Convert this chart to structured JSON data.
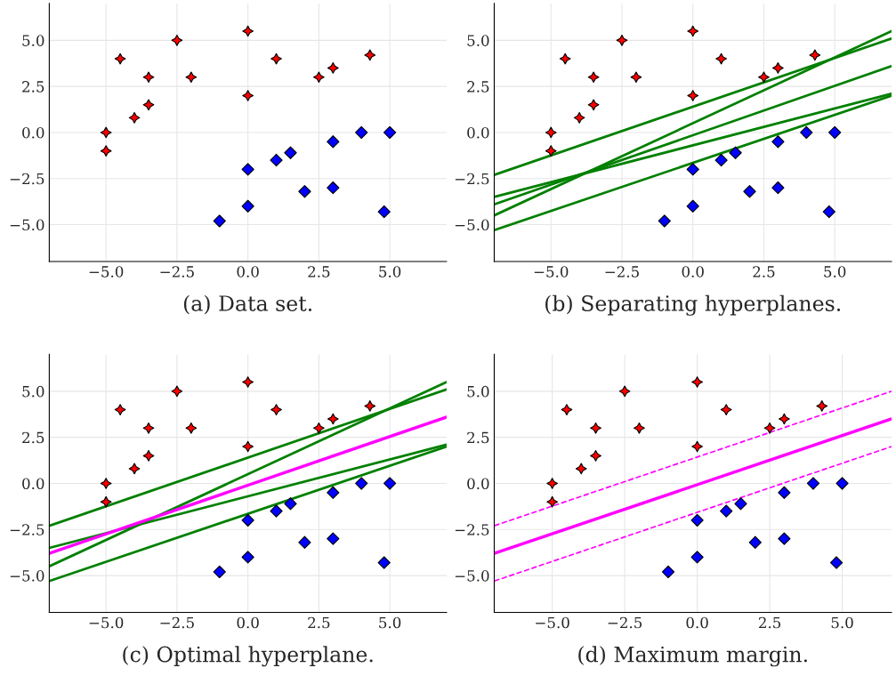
{
  "chart_data": [
    {
      "type": "scatter",
      "xlabel": "(a) Data set.",
      "xlim": [
        -7,
        7
      ],
      "ylim": [
        -7,
        7
      ],
      "xticks": [
        {
          "value": -5,
          "label": "−5.0"
        },
        {
          "value": -2.5,
          "label": "−2.5"
        },
        {
          "value": 0,
          "label": "0.0"
        },
        {
          "value": 2.5,
          "label": "2.5"
        },
        {
          "value": 5,
          "label": "5.0"
        }
      ],
      "yticks": [
        {
          "value": -5,
          "label": "−5.0"
        },
        {
          "value": -2.5,
          "label": "−2.5"
        },
        {
          "value": 0,
          "label": "0.0"
        },
        {
          "value": 2.5,
          "label": "2.5"
        },
        {
          "value": 5,
          "label": "5.0"
        }
      ],
      "grid": true,
      "legend": false,
      "series": [
        {
          "type": "scatter",
          "color": "#ff0000",
          "marker": "star",
          "x": [
            -5,
            -5,
            -4.5,
            -4,
            -3.5,
            -3.5,
            -2.5,
            -2,
            0,
            0,
            1,
            2.5,
            3,
            4.3
          ],
          "values": [
            0,
            -1,
            4,
            0.8,
            3,
            1.5,
            5,
            3,
            5.5,
            2,
            4,
            3,
            3.5,
            4.2
          ]
        },
        {
          "type": "scatter",
          "color": "#0000ff",
          "marker": "diamond",
          "x": [
            -1,
            0,
            0,
            1,
            1.5,
            2,
            3,
            3,
            4,
            5,
            4.8
          ],
          "values": [
            -4.8,
            -2,
            -4,
            -1.5,
            -1.1,
            -3.2,
            -0.5,
            -3,
            0,
            0,
            -4.3
          ]
        }
      ]
    },
    {
      "type": "scatter",
      "xlabel": "(b) Separating hyperplanes.",
      "xlim": [
        -7,
        7
      ],
      "ylim": [
        -7,
        7
      ],
      "xticks": [
        {
          "value": -5,
          "label": "−5.0"
        },
        {
          "value": -2.5,
          "label": "−2.5"
        },
        {
          "value": 0,
          "label": "0.0"
        },
        {
          "value": 2.5,
          "label": "2.5"
        },
        {
          "value": 5,
          "label": "5.0"
        }
      ],
      "yticks": [
        {
          "value": -5,
          "label": "−5.0"
        },
        {
          "value": -2.5,
          "label": "−2.5"
        },
        {
          "value": 0,
          "label": "0.0"
        },
        {
          "value": 2.5,
          "label": "2.5"
        },
        {
          "value": 5,
          "label": "5.0"
        }
      ],
      "grid": true,
      "legend": false,
      "series": [
        {
          "type": "scatter",
          "color": "#ff0000",
          "marker": "star",
          "x": [
            -5,
            -5,
            -4.5,
            -4,
            -3.5,
            -3.5,
            -2.5,
            -2,
            0,
            0,
            1,
            2.5,
            3,
            4.3
          ],
          "values": [
            0,
            -1,
            4,
            0.8,
            3,
            1.5,
            5,
            3,
            5.5,
            2,
            4,
            3,
            3.5,
            4.2
          ]
        },
        {
          "type": "scatter",
          "color": "#0000ff",
          "marker": "diamond",
          "x": [
            -1,
            0,
            0,
            1,
            1.5,
            2,
            3,
            3,
            4,
            5,
            4.8
          ],
          "values": [
            -4.8,
            -2,
            -4,
            -1.5,
            -1.1,
            -3.2,
            -0.5,
            -3,
            0,
            0,
            -4.3
          ]
        },
        {
          "type": "line",
          "color": "#008000",
          "line_style": "solid",
          "x": [
            -7,
            7
          ],
          "values": [
            -2.3,
            5.1
          ]
        },
        {
          "type": "line",
          "color": "#008000",
          "line_style": "solid",
          "x": [
            -7,
            7
          ],
          "values": [
            -4.5,
            5.5
          ]
        },
        {
          "type": "line",
          "color": "#008000",
          "line_style": "solid",
          "x": [
            -7,
            7
          ],
          "values": [
            -3.9,
            3.6
          ]
        },
        {
          "type": "line",
          "color": "#008000",
          "line_style": "solid",
          "x": [
            -7,
            7
          ],
          "values": [
            -3.5,
            2.1
          ]
        },
        {
          "type": "line",
          "color": "#008000",
          "line_style": "solid",
          "x": [
            -7,
            7
          ],
          "values": [
            -5.3,
            2.0
          ]
        }
      ]
    },
    {
      "type": "scatter",
      "xlabel": "(c) Optimal hyperplane.",
      "xlim": [
        -7,
        7
      ],
      "ylim": [
        -7,
        7
      ],
      "xticks": [
        {
          "value": -5,
          "label": "−5.0"
        },
        {
          "value": -2.5,
          "label": "−2.5"
        },
        {
          "value": 0,
          "label": "0.0"
        },
        {
          "value": 2.5,
          "label": "2.5"
        },
        {
          "value": 5,
          "label": "5.0"
        }
      ],
      "yticks": [
        {
          "value": -5,
          "label": "−5.0"
        },
        {
          "value": -2.5,
          "label": "−2.5"
        },
        {
          "value": 0,
          "label": "0.0"
        },
        {
          "value": 2.5,
          "label": "2.5"
        },
        {
          "value": 5,
          "label": "5.0"
        }
      ],
      "grid": true,
      "legend": false,
      "series": [
        {
          "type": "scatter",
          "color": "#ff0000",
          "marker": "star",
          "x": [
            -5,
            -5,
            -4.5,
            -4,
            -3.5,
            -3.5,
            -2.5,
            -2,
            0,
            0,
            1,
            2.5,
            3,
            4.3
          ],
          "values": [
            0,
            -1,
            4,
            0.8,
            3,
            1.5,
            5,
            3,
            5.5,
            2,
            4,
            3,
            3.5,
            4.2
          ]
        },
        {
          "type": "scatter",
          "color": "#0000ff",
          "marker": "diamond",
          "x": [
            -1,
            0,
            0,
            1,
            1.5,
            2,
            3,
            3,
            4,
            5,
            4.8
          ],
          "values": [
            -4.8,
            -2,
            -4,
            -1.5,
            -1.1,
            -3.2,
            -0.5,
            -3,
            0,
            0,
            -4.3
          ]
        },
        {
          "type": "line",
          "color": "#008000",
          "line_style": "solid",
          "x": [
            -7,
            7
          ],
          "values": [
            -2.3,
            5.1
          ]
        },
        {
          "type": "line",
          "color": "#008000",
          "line_style": "solid",
          "x": [
            -7,
            7
          ],
          "values": [
            -4.5,
            5.5
          ]
        },
        {
          "type": "line",
          "color": "#008000",
          "line_style": "solid",
          "x": [
            -7,
            7
          ],
          "values": [
            -3.5,
            2.1
          ]
        },
        {
          "type": "line",
          "color": "#008000",
          "line_style": "solid",
          "x": [
            -7,
            7
          ],
          "values": [
            -5.3,
            2.0
          ]
        },
        {
          "type": "line",
          "color": "#ff00ff",
          "line_style": "solid",
          "x": [
            -7,
            7
          ],
          "values": [
            -3.8,
            3.6
          ]
        }
      ]
    },
    {
      "type": "scatter",
      "xlabel": "(d) Maximum margin.",
      "xlim": [
        -7,
        6.7
      ],
      "ylim": [
        -7,
        7
      ],
      "xticks": [
        {
          "value": -5,
          "label": "−5.0"
        },
        {
          "value": -2.5,
          "label": "−2.5"
        },
        {
          "value": 0,
          "label": "0.0"
        },
        {
          "value": 2.5,
          "label": "2.5"
        },
        {
          "value": 5,
          "label": "5.0"
        }
      ],
      "yticks": [
        {
          "value": -5,
          "label": "−5.0"
        },
        {
          "value": -2.5,
          "label": "−2.5"
        },
        {
          "value": 0,
          "label": "0.0"
        },
        {
          "value": 2.5,
          "label": "2.5"
        },
        {
          "value": 5,
          "label": "5.0"
        }
      ],
      "grid": true,
      "legend": false,
      "series": [
        {
          "type": "scatter",
          "color": "#ff0000",
          "marker": "star",
          "x": [
            -5,
            -5,
            -4.5,
            -4,
            -3.5,
            -3.5,
            -2.5,
            -2,
            0,
            0,
            1,
            2.5,
            3,
            4.3
          ],
          "values": [
            0,
            -1,
            4,
            0.8,
            3,
            1.5,
            5,
            3,
            5.5,
            2,
            4,
            3,
            3.5,
            4.2
          ]
        },
        {
          "type": "scatter",
          "color": "#0000ff",
          "marker": "diamond",
          "x": [
            -1,
            0,
            0,
            1,
            1.5,
            2,
            3,
            3,
            4,
            5,
            4.8
          ],
          "values": [
            -4.8,
            -2,
            -4,
            -1.5,
            -1.1,
            -3.2,
            -0.5,
            -3,
            0,
            0,
            -4.3
          ]
        },
        {
          "type": "line",
          "color": "#ff00ff",
          "line_style": "solid",
          "x": [
            -7,
            6.7
          ],
          "values": [
            -3.8,
            3.5
          ]
        },
        {
          "type": "line",
          "color": "#ff00ff",
          "line_style": "dashed",
          "x": [
            -7,
            6.7
          ],
          "values": [
            -2.3,
            5.0
          ]
        },
        {
          "type": "line",
          "color": "#ff00ff",
          "line_style": "dashed",
          "x": [
            -7,
            6.7
          ],
          "values": [
            -5.3,
            2.0
          ]
        }
      ]
    }
  ]
}
